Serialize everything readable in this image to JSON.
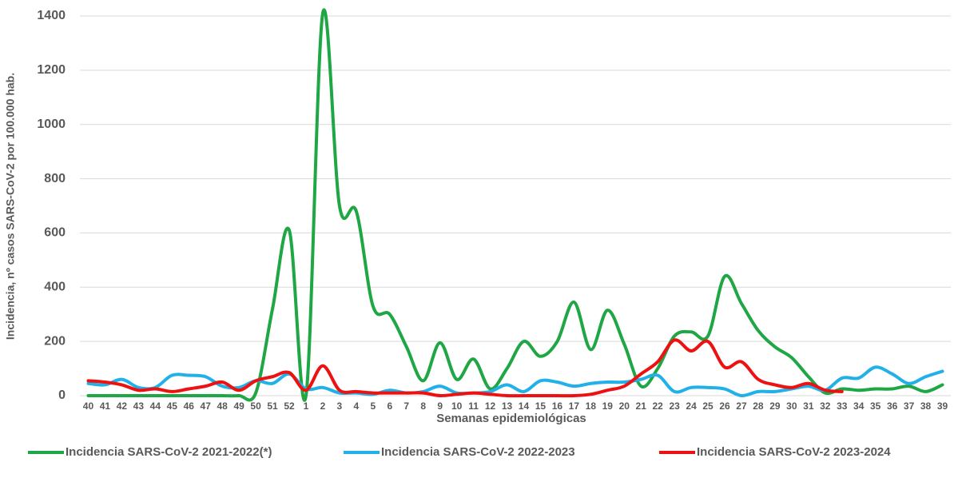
{
  "chart_data": {
    "type": "line",
    "x_label": "Semanas epidemiológicas",
    "y_label": "Incidencia, nº casos SARS-CoV-2 por 100.000 hab.",
    "categories": [
      "40",
      "41",
      "42",
      "43",
      "44",
      "45",
      "46",
      "47",
      "48",
      "49",
      "50",
      "51",
      "52",
      "1",
      "2",
      "3",
      "4",
      "5",
      "6",
      "7",
      "8",
      "9",
      "10",
      "11",
      "12",
      "13",
      "14",
      "15",
      "16",
      "17",
      "18",
      "19",
      "20",
      "21",
      "22",
      "23",
      "24",
      "25",
      "26",
      "27",
      "28",
      "29",
      "30",
      "31",
      "32",
      "33",
      "34",
      "35",
      "36",
      "37",
      "38",
      "39"
    ],
    "ylim": [
      0,
      1400
    ],
    "yticks": [
      0,
      200,
      400,
      600,
      800,
      1000,
      1200,
      1400
    ],
    "grid": true,
    "legend": "bottom",
    "series": [
      {
        "name": "Incidencia SARS-CoV-2 2021-2022(*)",
        "color": "#1fa745",
        "values": [
          0,
          0,
          0,
          0,
          0,
          0,
          0,
          0,
          0,
          0,
          10,
          320,
          610,
          0,
          1410,
          700,
          680,
          330,
          300,
          180,
          55,
          195,
          60,
          135,
          25,
          100,
          200,
          145,
          200,
          345,
          170,
          315,
          190,
          35,
          100,
          220,
          235,
          220,
          440,
          340,
          240,
          180,
          140,
          70,
          10,
          25,
          20,
          25,
          25,
          35,
          15,
          40
        ]
      },
      {
        "name": "Incidencia SARS-CoV-2 2022-2023",
        "color": "#22b0e8",
        "values": [
          45,
          40,
          60,
          30,
          30,
          75,
          75,
          70,
          35,
          30,
          55,
          45,
          80,
          25,
          30,
          10,
          10,
          5,
          20,
          10,
          15,
          35,
          10,
          10,
          15,
          40,
          15,
          55,
          50,
          35,
          45,
          50,
          50,
          60,
          75,
          15,
          30,
          30,
          25,
          0,
          15,
          15,
          25,
          35,
          20,
          65,
          65,
          105,
          80,
          45,
          70,
          90
        ]
      },
      {
        "name": "Incidencia SARS-CoV-2 2023-2024",
        "color": "#ee1111",
        "values": [
          55,
          50,
          40,
          20,
          25,
          15,
          25,
          35,
          50,
          20,
          55,
          70,
          85,
          20,
          110,
          20,
          15,
          10,
          10,
          10,
          10,
          0,
          5,
          10,
          5,
          0,
          0,
          0,
          0,
          0,
          5,
          20,
          35,
          80,
          125,
          205,
          165,
          200,
          105,
          125,
          60,
          40,
          30,
          45,
          20,
          15,
          null,
          null,
          null,
          null,
          null,
          null
        ]
      }
    ]
  }
}
